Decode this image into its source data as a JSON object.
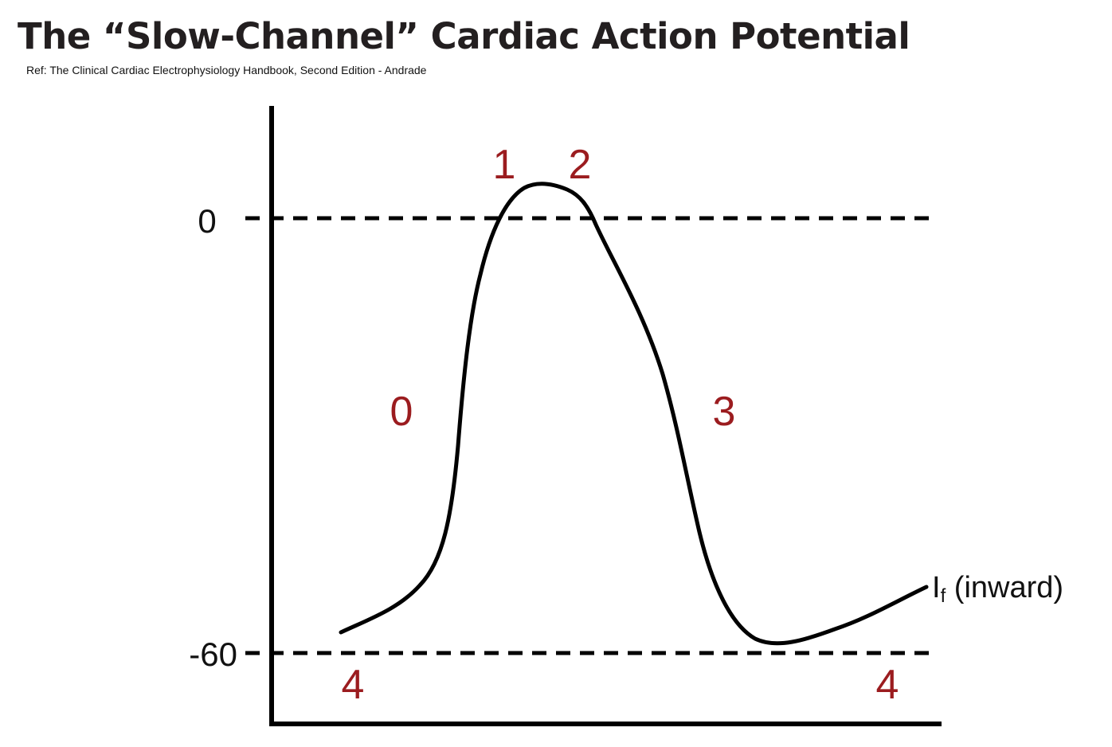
{
  "header": {
    "title": "The “Slow-Channel” Cardiac Action Potential",
    "reference": "Ref: The Clinical Cardiac Electrophysiology Handbook, Second Edition - Andrade"
  },
  "diagram": {
    "y_axis_ticks": [
      "0",
      "-60"
    ],
    "phases": {
      "phase_0": "0",
      "phase_1": "1",
      "phase_2": "2",
      "phase_3": "3",
      "phase_4_start": "4",
      "phase_4_end": "4"
    },
    "current_label": {
      "symbol": "I",
      "subscript": "f",
      "suffix": " (inward)"
    }
  },
  "colors": {
    "title_text": "#231f20",
    "phase_label": "#9b1c1f",
    "curve": "#000000",
    "axis": "#000000"
  }
}
